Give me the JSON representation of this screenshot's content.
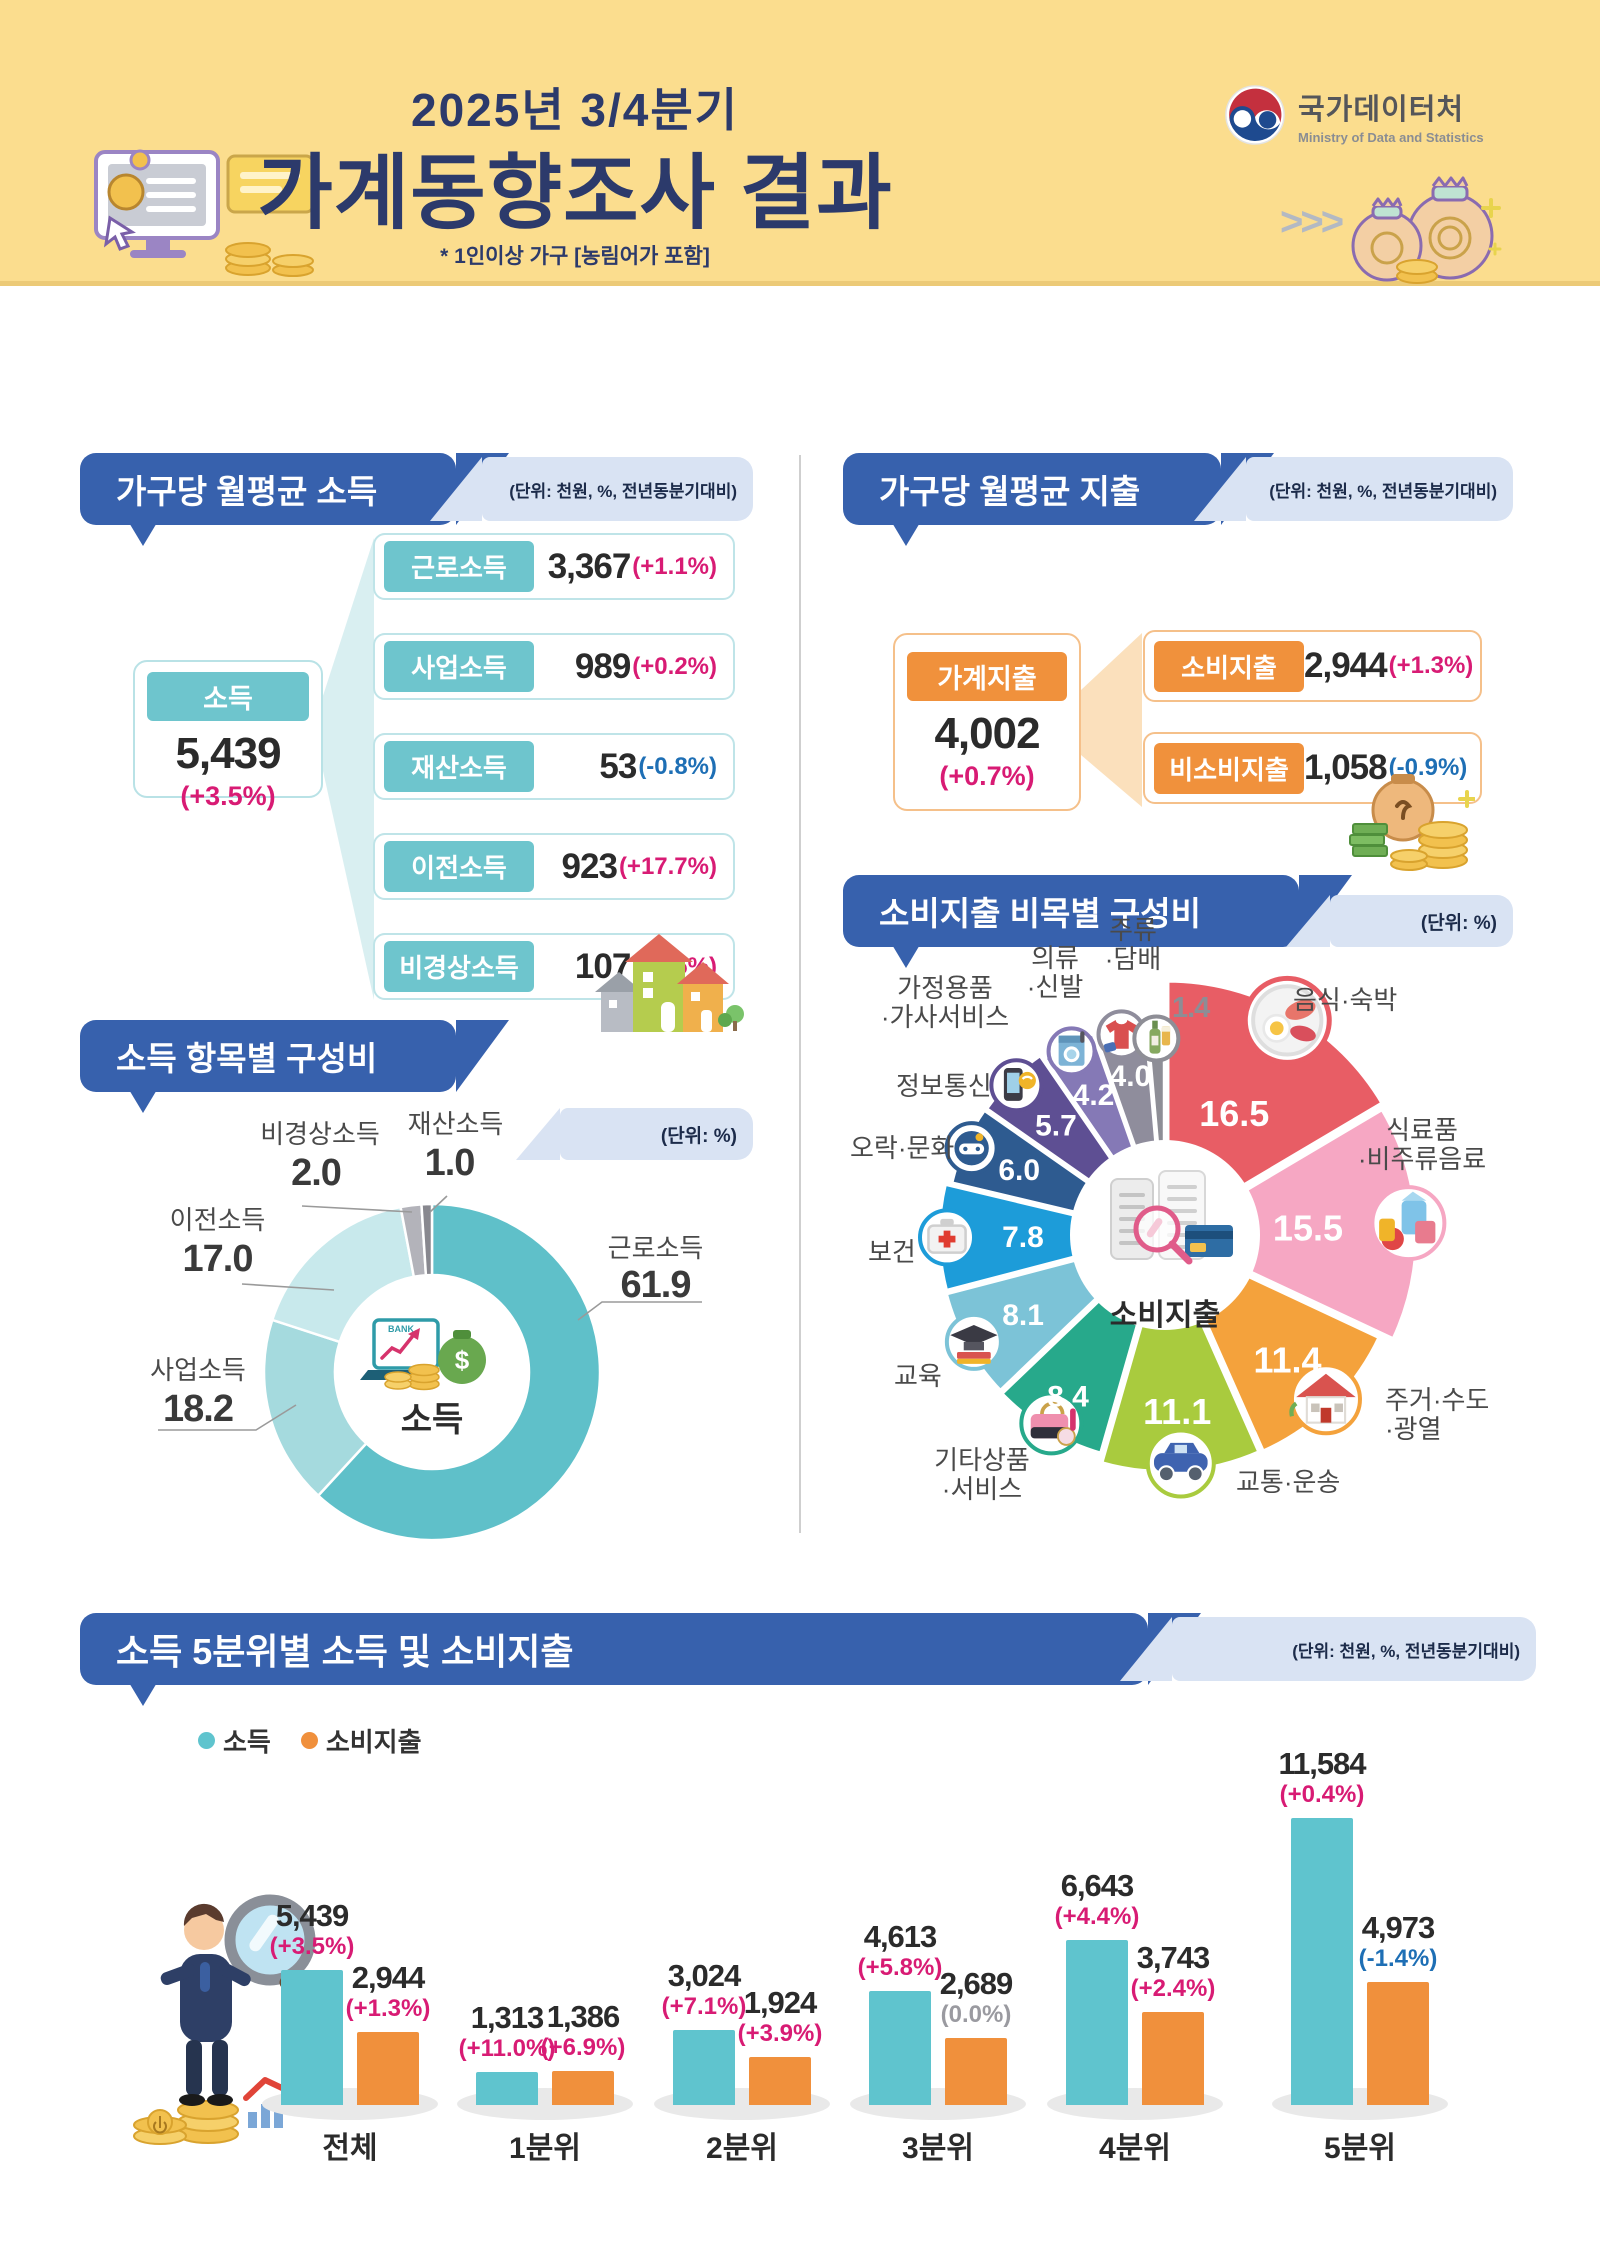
{
  "header": {
    "quarter_title": "2025년 3/4분기",
    "main_title": "가계동향조사 결과",
    "note": "* 1인이상 가구 [농림어가 포함]",
    "logo_title": "국가데이터처",
    "logo_subtitle": "Ministry of Data and Statistics",
    "chevrons": ">>>"
  },
  "colors": {
    "positive": "#d81b74",
    "negative": "#1e6fb5",
    "neutral": "#9a9aa0",
    "header_blue": "#3761ad",
    "strip_blue": "#d9e3f3",
    "teal": "#6ec5cd",
    "orange": "#f0913c",
    "band_yellow": "#fbdd8e",
    "navy_title": "#2c3a6b",
    "bar_income": "#5fc4ce",
    "bar_expense": "#f0903c"
  },
  "income_section": {
    "title": "가구당 월평균 소득",
    "unit": "(단위: 천원, %, 전년동분기대비)",
    "total": {
      "label": "소득",
      "value": "5,439",
      "change": "(+3.5%)",
      "change_type": "up"
    },
    "items": [
      {
        "label": "근로소득",
        "value": "3,367",
        "change": "(+1.1%)",
        "change_type": "up"
      },
      {
        "label": "사업소득",
        "value": "989",
        "change": "(+0.2%)",
        "change_type": "up"
      },
      {
        "label": "재산소득",
        "value": "53",
        "change": "(-0.8%)",
        "change_type": "down"
      },
      {
        "label": "이전소득",
        "value": "923",
        "change": "(+17.7%)",
        "change_type": "up"
      },
      {
        "label": "비경상소득",
        "value": "107",
        "change": "(+4.6%)",
        "change_type": "up"
      }
    ]
  },
  "expenditure_section": {
    "title": "가구당 월평균 지출",
    "unit": "(단위: 천원, %, 전년동분기대비)",
    "total": {
      "label": "가계지출",
      "value": "4,002",
      "change": "(+0.7%)",
      "change_type": "up"
    },
    "items": [
      {
        "label": "소비지출",
        "value": "2,944",
        "change": "(+1.3%)",
        "change_type": "up"
      },
      {
        "label": "비소비지출",
        "value": "1,058",
        "change": "(-0.9%)",
        "change_type": "down"
      }
    ]
  },
  "chart_data": [
    {
      "type": "donut",
      "title": "소득 항목별 구성비",
      "unit": "(단위: %)",
      "center_label": "소득",
      "segments": [
        {
          "label": "근로소득",
          "value": 61.9,
          "color": "#5fc0c9"
        },
        {
          "label": "사업소득",
          "value": 18.2,
          "color": "#a5dade"
        },
        {
          "label": "이전소득",
          "value": 17.0,
          "color": "#c8e9ec"
        },
        {
          "label": "비경상소득",
          "value": 2.0,
          "color": "#b3b3ba"
        },
        {
          "label": "재산소득",
          "value": 1.0,
          "color": "#88888f"
        }
      ]
    },
    {
      "type": "pie",
      "title": "소비지출 비목별 구성비",
      "unit": "(단위: %)",
      "center_label": "소비지출",
      "segments": [
        {
          "label": "음식·숙박",
          "lines": [
            "음식·숙박"
          ],
          "value": 16.5,
          "color": "#e85d65",
          "icon": "food-plate-icon"
        },
        {
          "label": "식료품·비주류음료",
          "lines": [
            "식료품",
            "·비주류음료"
          ],
          "value": 15.5,
          "color": "#f6a7c3",
          "icon": "groceries-icon"
        },
        {
          "label": "주거·수도·광열",
          "lines": [
            "주거·수도",
            "·광열"
          ],
          "value": 11.4,
          "color": "#f4a23c",
          "icon": "house-icon"
        },
        {
          "label": "교통·운송",
          "lines": [
            "교통·운송"
          ],
          "value": 11.1,
          "color": "#a9cb3e",
          "icon": "car-icon"
        },
        {
          "label": "기타상품·서비스",
          "lines": [
            "기타상품",
            "·서비스"
          ],
          "value": 8.4,
          "color": "#27a98b",
          "icon": "handbag-icon"
        },
        {
          "label": "교육",
          "lines": [
            "교육"
          ],
          "value": 8.1,
          "color": "#7cc3d7",
          "icon": "graduation-cap-icon"
        },
        {
          "label": "보건",
          "lines": [
            "보건"
          ],
          "value": 7.8,
          "color": "#1d9cd9",
          "icon": "first-aid-icon"
        },
        {
          "label": "오락·문화",
          "lines": [
            "오락·문화"
          ],
          "value": 6.0,
          "color": "#2e5b90",
          "icon": "entertainment-icon"
        },
        {
          "label": "정보통신",
          "lines": [
            "정보통신"
          ],
          "value": 5.7,
          "color": "#5e4f93",
          "icon": "phone-icon"
        },
        {
          "label": "가정용품·가사서비스",
          "lines": [
            "가정용품",
            "·가사서비스"
          ],
          "value": 4.2,
          "color": "#8579b6",
          "icon": "appliance-icon"
        },
        {
          "label": "의류·신발",
          "lines": [
            "의류",
            "·신발"
          ],
          "value": 4.0,
          "color": "#8f8d9c",
          "icon": "clothing-icon"
        },
        {
          "label": "주류·담배",
          "lines": [
            "주류",
            "·담배"
          ],
          "value": 1.4,
          "color": "#8e8e96",
          "icon": "bottle-icon"
        }
      ]
    },
    {
      "type": "bar",
      "title": "소득 5분위별 소득 및 소비지출",
      "unit": "(단위: 천원, %, 전년동분기대비)",
      "legend": [
        {
          "label": "소득",
          "color": "#5fc4ce"
        },
        {
          "label": "소비지출",
          "color": "#f0903c"
        }
      ],
      "categories": [
        "전체",
        "1분위",
        "2분위",
        "3분위",
        "4분위",
        "5분위"
      ],
      "series": [
        {
          "name": "소득",
          "color": "#5fc4ce",
          "values": [
            5439,
            1313,
            3024,
            4613,
            6643,
            11584
          ],
          "labels": [
            "5,439",
            "1,313",
            "3,024",
            "4,613",
            "6,643",
            "11,584"
          ],
          "changes": [
            "(+3.5%)",
            "(+11.0%)",
            "(+7.1%)",
            "(+5.8%)",
            "(+4.4%)",
            "(+0.4%)"
          ],
          "change_types": [
            "up",
            "up",
            "up",
            "up",
            "up",
            "up"
          ]
        },
        {
          "name": "소비지출",
          "color": "#f0903c",
          "values": [
            2944,
            1386,
            1924,
            2689,
            3743,
            4973
          ],
          "labels": [
            "2,944",
            "1,386",
            "1,924",
            "2,689",
            "3,743",
            "4,973"
          ],
          "changes": [
            "(+1.3%)",
            "(+6.9%)",
            "(+3.9%)",
            "(0.0%)",
            "(+2.4%)",
            "(-1.4%)"
          ],
          "change_types": [
            "up",
            "up",
            "up",
            "zero",
            "up",
            "down"
          ]
        }
      ],
      "ylim": [
        0,
        12000
      ],
      "grid": false,
      "legend_position": "top-left"
    }
  ]
}
